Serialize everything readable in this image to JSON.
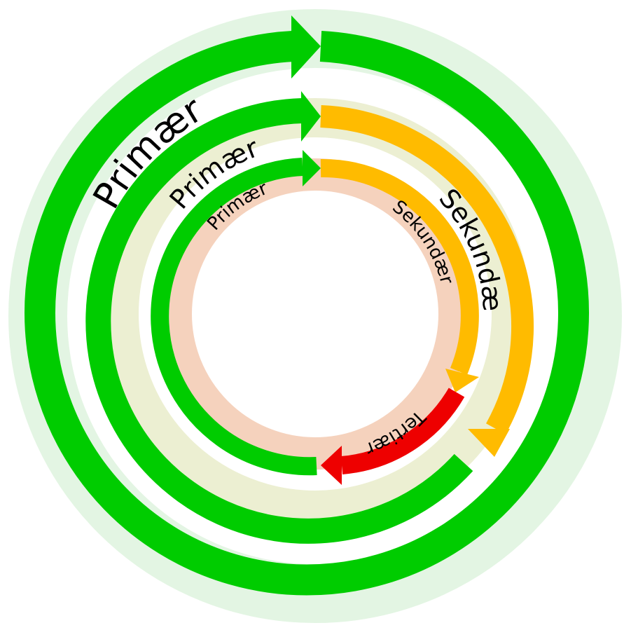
{
  "diagram": {
    "colors": {
      "primary": "#00cc00",
      "secondary": "#ffbb00",
      "tertiary": "#ee0000",
      "ring_outer": "#e3f5e3",
      "ring_middle": "#ecefd2",
      "ring_inner": "#f5d2bd"
    },
    "rings": [
      {
        "name": "outer",
        "segments": [
          {
            "kind": "primary",
            "label": "Primær"
          }
        ],
        "labels": {
          "primary": "Primær"
        }
      },
      {
        "name": "middle",
        "segments": [
          {
            "kind": "primary",
            "label": "Primær"
          },
          {
            "kind": "secondary",
            "label": "Sekundær"
          }
        ],
        "labels": {
          "primary": "Primær",
          "secondary": "Sekundær"
        }
      },
      {
        "name": "inner",
        "segments": [
          {
            "kind": "primary",
            "label": "Primær"
          },
          {
            "kind": "secondary",
            "label": "Sekundær"
          },
          {
            "kind": "tertiary",
            "label": "Tertiær"
          }
        ],
        "labels": {
          "primary": "Primær",
          "secondary": "Sekundær",
          "tertiary": "Tertiær"
        }
      }
    ]
  }
}
